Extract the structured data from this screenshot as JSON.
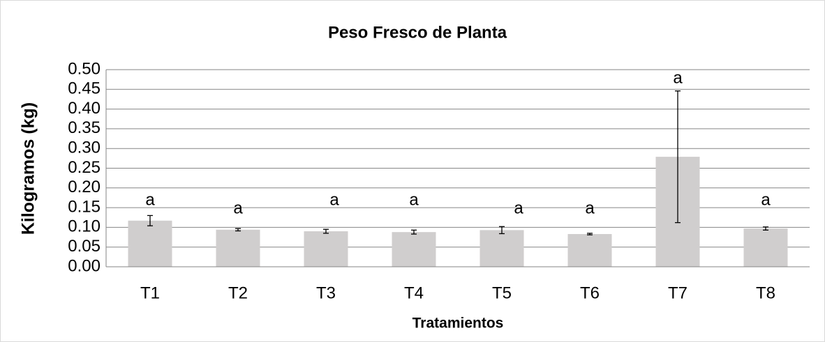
{
  "chart_data": {
    "type": "bar",
    "title": "Peso Fresco de Planta",
    "x_label": "Tratamientos",
    "y_label": "Kilogramos (kg)",
    "categories": [
      "T1",
      "T2",
      "T3",
      "T4",
      "T5",
      "T6",
      "T7",
      "T8"
    ],
    "series": [
      {
        "values": [
          0.117,
          0.094,
          0.09,
          0.088,
          0.093,
          0.083,
          0.279,
          0.097
        ],
        "errors": [
          0.013,
          0.003,
          0.005,
          0.005,
          0.009,
          0.002,
          0.167,
          0.004
        ],
        "color": "#d0cece"
      }
    ],
    "annotations": [
      "a",
      "a",
      "a",
      "a",
      "a",
      "a",
      "a",
      "a"
    ],
    "ylim": [
      0,
      0.5
    ],
    "yticks": [
      {
        "value": 0,
        "label": "0.00"
      },
      {
        "value": 0.05,
        "label": "0.05"
      },
      {
        "value": 0.1,
        "label": "0.10"
      },
      {
        "value": 0.15,
        "label": "0.15"
      },
      {
        "value": 0.2,
        "label": "0.20"
      },
      {
        "value": 0.25,
        "label": "0.25"
      },
      {
        "value": 0.3,
        "label": "0.30"
      },
      {
        "value": 0.35,
        "label": "0.35"
      },
      {
        "value": 0.4,
        "label": "0.40"
      },
      {
        "value": 0.45,
        "label": "0.45"
      },
      {
        "value": 0.5,
        "label": "0.50"
      }
    ],
    "grid": true
  }
}
